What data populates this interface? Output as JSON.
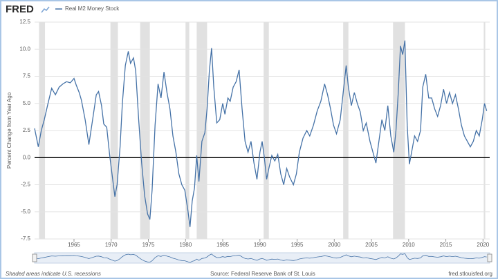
{
  "chart_data": {
    "type": "line",
    "logo": "FRED",
    "ylabel": "Percent Change from Year Ago",
    "note": "Shaded areas indicate U.S. recessions",
    "source": "Source: Federal Reserve Bank of St. Louis",
    "site": "fred.stlouisfed.org",
    "xlim": [
      1959.7,
      2020.9
    ],
    "xticks": [
      1965,
      1970,
      1975,
      1980,
      1985,
      1990,
      1995,
      2000,
      2005,
      2010,
      2015,
      2020
    ],
    "ylim": [
      -7.5,
      12.5
    ],
    "yticks": [
      {
        "value": 12.5,
        "label": "12.5"
      },
      {
        "value": 10,
        "label": "10.0"
      },
      7.5,
      {
        "value": 5,
        "label": "5.0"
      },
      2.5,
      {
        "value": 0,
        "label": "0.0"
      },
      -2.5,
      {
        "value": -5,
        "label": "-5.0"
      },
      -7.5
    ],
    "grid": true,
    "recessions": [
      [
        1960.3,
        1961.1
      ],
      [
        1969.9,
        1970.9
      ],
      [
        1973.9,
        1975.2
      ],
      [
        1980.0,
        1980.5
      ],
      [
        1981.5,
        1982.9
      ],
      [
        1990.5,
        1991.2
      ],
      [
        2001.2,
        2001.9
      ],
      [
        2007.9,
        2009.5
      ],
      [
        2020.1,
        2020.3
      ]
    ],
    "x": [
      1959.7,
      1960.2,
      1960.6,
      1961.0,
      1961.5,
      1962.0,
      1962.5,
      1963.0,
      1963.5,
      1964.0,
      1964.5,
      1965.0,
      1965.3,
      1965.7,
      1966.0,
      1966.5,
      1967.0,
      1967.5,
      1968.0,
      1968.3,
      1968.7,
      1969.0,
      1969.4,
      1969.8,
      1970.2,
      1970.5,
      1970.8,
      1971.2,
      1971.5,
      1971.9,
      1972.3,
      1972.6,
      1973.0,
      1973.3,
      1973.7,
      1974.1,
      1974.5,
      1974.9,
      1975.2,
      1975.5,
      1975.9,
      1976.3,
      1976.7,
      1977.1,
      1977.5,
      1977.9,
      1978.3,
      1978.7,
      1979.1,
      1979.5,
      1979.9,
      1980.3,
      1980.6,
      1980.9,
      1981.2,
      1981.5,
      1981.8,
      1982.2,
      1982.6,
      1982.9,
      1983.2,
      1983.5,
      1983.8,
      1984.2,
      1984.6,
      1985.0,
      1985.3,
      1985.7,
      1986.0,
      1986.4,
      1986.8,
      1987.2,
      1987.6,
      1988.0,
      1988.4,
      1988.8,
      1989.2,
      1989.6,
      1990.0,
      1990.3,
      1990.6,
      1990.9,
      1991.2,
      1991.6,
      1992.0,
      1992.4,
      1992.8,
      1993.2,
      1993.6,
      1994.0,
      1994.5,
      1994.9,
      1995.3,
      1995.8,
      1996.3,
      1996.7,
      1997.2,
      1997.7,
      1998.2,
      1998.7,
      1999.1,
      1999.5,
      1999.9,
      2000.3,
      2000.8,
      2001.2,
      2001.6,
      2001.9,
      2002.3,
      2002.7,
      2003.1,
      2003.5,
      2003.9,
      2004.3,
      2004.8,
      2005.2,
      2005.6,
      2006.0,
      2006.4,
      2006.8,
      2007.2,
      2007.6,
      2008.0,
      2008.3,
      2008.6,
      2008.9,
      2009.2,
      2009.5,
      2009.8,
      2010.1,
      2010.4,
      2010.8,
      2011.2,
      2011.6,
      2011.9,
      2012.3,
      2012.7,
      2013.1,
      2013.5,
      2013.9,
      2014.3,
      2014.7,
      2015.1,
      2015.5,
      2015.9,
      2016.3,
      2016.7,
      2017.1,
      2017.5,
      2017.9,
      2018.3,
      2018.7,
      2019.1,
      2019.5,
      2019.9,
      2020.2,
      2020.5
    ],
    "series": [
      {
        "name": "Real M2 Money Stock",
        "color": "#4572a7",
        "values": [
          2.7,
          1.0,
          2.5,
          3.5,
          5.0,
          6.4,
          5.8,
          6.5,
          6.8,
          7.0,
          6.9,
          7.3,
          6.7,
          6.0,
          5.3,
          3.5,
          1.2,
          3.5,
          5.8,
          6.1,
          4.8,
          3.1,
          2.8,
          0.2,
          -2.0,
          -3.6,
          -2.5,
          1.0,
          5.0,
          8.5,
          9.8,
          8.7,
          9.2,
          8.0,
          3.5,
          -0.5,
          -3.5,
          -5.2,
          -5.7,
          -3.0,
          3.0,
          6.8,
          5.5,
          7.9,
          6.0,
          4.5,
          2.0,
          0.5,
          -1.5,
          -2.5,
          -3.0,
          -4.8,
          -6.4,
          -4.0,
          -2.8,
          0.2,
          -2.2,
          1.5,
          2.3,
          4.5,
          8.0,
          10.1,
          6.5,
          3.2,
          3.5,
          5.0,
          4.0,
          5.5,
          5.2,
          6.5,
          7.0,
          8.1,
          4.5,
          1.5,
          0.5,
          1.5,
          -0.5,
          -2.0,
          0.5,
          1.5,
          0,
          -2.0,
          -1.0,
          0.2,
          -0.3,
          0.3,
          -1.5,
          -2.5,
          -1.0,
          -1.8,
          -2.5,
          -1.5,
          0.5,
          1.8,
          2.5,
          2.0,
          3.0,
          4.3,
          5.2,
          6.8,
          5.8,
          4.5,
          3.0,
          2.2,
          3.5,
          6.0,
          8.5,
          6.5,
          4.8,
          6.0,
          5.0,
          4.2,
          2.5,
          3.2,
          1.5,
          0.5,
          -0.5,
          1.5,
          3.5,
          2.5,
          4.8,
          2.0,
          0.5,
          2.5,
          6.0,
          10.3,
          9.5,
          10.8,
          3.0,
          -0.6,
          0.5,
          2.0,
          1.5,
          2.5,
          6.5,
          7.7,
          5.5,
          5.5,
          4.5,
          3.8,
          4.8,
          6.3,
          5.0,
          6.0,
          5.0,
          5.8,
          4.5,
          3.0,
          2.0,
          1.5,
          1.0,
          1.5,
          2.5,
          2.0,
          3.5,
          5.0,
          4.3
        ]
      }
    ]
  }
}
